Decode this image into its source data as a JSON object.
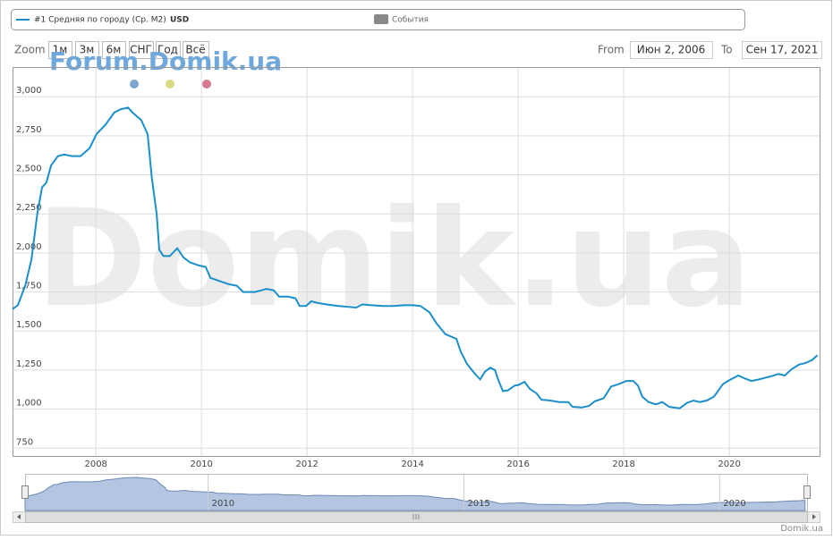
{
  "chart_data": {
    "type": "line",
    "series": [
      {
        "name": "#1 Средняя по городу (Ср. М2)",
        "unit": "USD",
        "color": "#1a8fc9",
        "values": [
          1640,
          1665,
          1790,
          1960,
          2250,
          2420,
          2450,
          2560,
          2620,
          2630,
          2620,
          2620,
          2670,
          2760,
          2820,
          2900,
          2920,
          2930,
          2900,
          2850,
          2760,
          2480,
          2250,
          2020,
          1980,
          1980,
          2030,
          1970,
          1940,
          1920,
          1910,
          1840,
          1820,
          1800,
          1790,
          1750,
          1750,
          1760,
          1770,
          1760,
          1720,
          1720,
          1710,
          1660,
          1660,
          1690,
          1680,
          1670,
          1660,
          1650,
          1670,
          1665,
          1660,
          1660,
          1665,
          1665,
          1660,
          1620,
          1550,
          1480,
          1450,
          1370,
          1290,
          1230,
          1190,
          1240,
          1265,
          1250,
          1190,
          1115,
          1120,
          1150,
          1155,
          1175,
          1130,
          1100,
          1060,
          1055,
          1045,
          1045,
          1015,
          1010,
          1020,
          1050,
          1070,
          1145,
          1160,
          1180,
          1180,
          1150,
          1080,
          1045,
          1030,
          1045,
          1015,
          1005,
          1040,
          1055,
          1045,
          1055,
          1080,
          1160,
          1185,
          1215,
          1195,
          1180,
          1190,
          1200,
          1210,
          1225,
          1215,
          1255,
          1285,
          1295,
          1315,
          1345
        ]
      }
    ],
    "x": [
      2006.42,
      2006.52,
      2006.66,
      2006.78,
      2006.89,
      2006.98,
      2007.06,
      2007.15,
      2007.28,
      2007.4,
      2007.54,
      2007.71,
      2007.88,
      2008.01,
      2008.18,
      2008.35,
      2008.47,
      2008.61,
      2008.69,
      2008.86,
      2008.98,
      2009.06,
      2009.15,
      2009.2,
      2009.28,
      2009.4,
      2009.54,
      2009.66,
      2009.78,
      2009.95,
      2010.08,
      2010.17,
      2010.34,
      2010.51,
      2010.67,
      2010.79,
      2011.01,
      2011.13,
      2011.23,
      2011.37,
      2011.47,
      2011.64,
      2011.78,
      2011.86,
      2011.98,
      2012.08,
      2012.2,
      2012.37,
      2012.59,
      2012.93,
      2013.05,
      2013.22,
      2013.44,
      2013.64,
      2013.84,
      2014.01,
      2014.15,
      2014.32,
      2014.45,
      2014.62,
      2014.83,
      2014.91,
      2015.03,
      2015.17,
      2015.28,
      2015.37,
      2015.47,
      2015.56,
      2015.62,
      2015.71,
      2015.81,
      2015.93,
      2016.01,
      2016.12,
      2016.22,
      2016.35,
      2016.44,
      2016.61,
      2016.78,
      2016.95,
      2017.03,
      2017.2,
      2017.34,
      2017.45,
      2017.62,
      2017.76,
      2017.91,
      2018.05,
      2018.18,
      2018.27,
      2018.35,
      2018.47,
      2018.61,
      2018.73,
      2018.86,
      2019.06,
      2019.2,
      2019.32,
      2019.44,
      2019.57,
      2019.71,
      2019.88,
      2020.0,
      2020.17,
      2020.3,
      2020.42,
      2020.56,
      2020.67,
      2020.79,
      2020.93,
      2021.05,
      2021.18,
      2021.32,
      2021.44,
      2021.57,
      2021.67
    ],
    "xlim": [
      2006.42,
      2021.71
    ],
    "ylim": [
      700,
      3190
    ],
    "xticks": [
      2008,
      2010,
      2012,
      2014,
      2016,
      2018,
      2020
    ],
    "yticks": [
      750,
      {
        "value": 1000,
        "label": "1,000"
      },
      {
        "value": 1250,
        "label": "1,250"
      },
      {
        "value": 1500,
        "label": "1,500"
      },
      {
        "value": 1750,
        "label": "1,750"
      },
      {
        "value": 2000,
        "label": "2,000"
      },
      {
        "value": 2250,
        "label": "2,250"
      },
      {
        "value": 2500,
        "label": "2,500"
      },
      {
        "value": 2750,
        "label": "2,750"
      },
      {
        "value": 3000,
        "label": "3,000"
      }
    ],
    "grid": true,
    "events_legend": {
      "name": "События",
      "color": "#888888"
    },
    "zoom": {
      "label": "Zoom",
      "buttons": [
        "1м",
        "3м",
        "6м",
        "СНГ",
        "Год",
        "Всё"
      ]
    },
    "range": {
      "from_label": "From",
      "from": "Июн 2, 2006",
      "to_label": "To",
      "to": "Сен 17, 2021"
    },
    "watermark": "Forum.Domik.ua",
    "background_watermark": "Domik.ua",
    "credit": "Domik.ua",
    "navigator": {
      "xticks": [
        2010,
        2015,
        2020
      ]
    }
  }
}
